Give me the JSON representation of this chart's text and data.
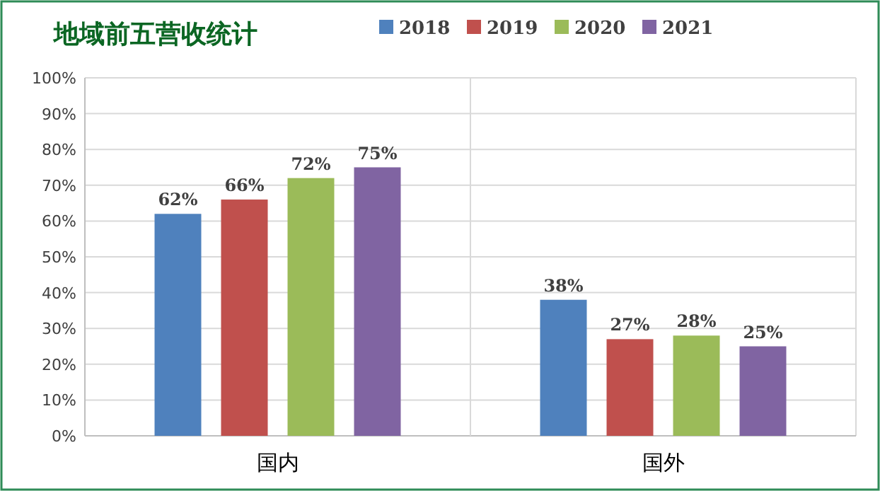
{
  "chart_data": {
    "type": "bar",
    "title": "地域前五营收统计",
    "categories": [
      "国内",
      "国外"
    ],
    "series": [
      {
        "name": "2018",
        "color": "#4f81bd",
        "values": [
          62,
          38
        ],
        "value_labels": [
          "62%",
          "38%"
        ]
      },
      {
        "name": "2019",
        "color": "#c0504d",
        "values": [
          66,
          27
        ],
        "value_labels": [
          "66%",
          "27%"
        ]
      },
      {
        "name": "2020",
        "color": "#9bbb59",
        "values": [
          72,
          28
        ],
        "value_labels": [
          "72%",
          "28%"
        ]
      },
      {
        "name": "2021",
        "color": "#8064a2",
        "values": [
          75,
          25
        ],
        "value_labels": [
          "75%",
          "25%"
        ]
      }
    ],
    "ylim": [
      0,
      100
    ],
    "yticks": [
      {
        "value": 0,
        "label": "0%"
      },
      {
        "value": 10,
        "label": "10%"
      },
      {
        "value": 20,
        "label": "20%"
      },
      {
        "value": 30,
        "label": "30%"
      },
      {
        "value": 40,
        "label": "40%"
      },
      {
        "value": 50,
        "label": "50%"
      },
      {
        "value": 60,
        "label": "60%"
      },
      {
        "value": 70,
        "label": "70%"
      },
      {
        "value": 80,
        "label": "80%"
      },
      {
        "value": 90,
        "label": "90%"
      },
      {
        "value": 100,
        "label": "100%"
      }
    ],
    "grid": "y",
    "legend": "top"
  }
}
